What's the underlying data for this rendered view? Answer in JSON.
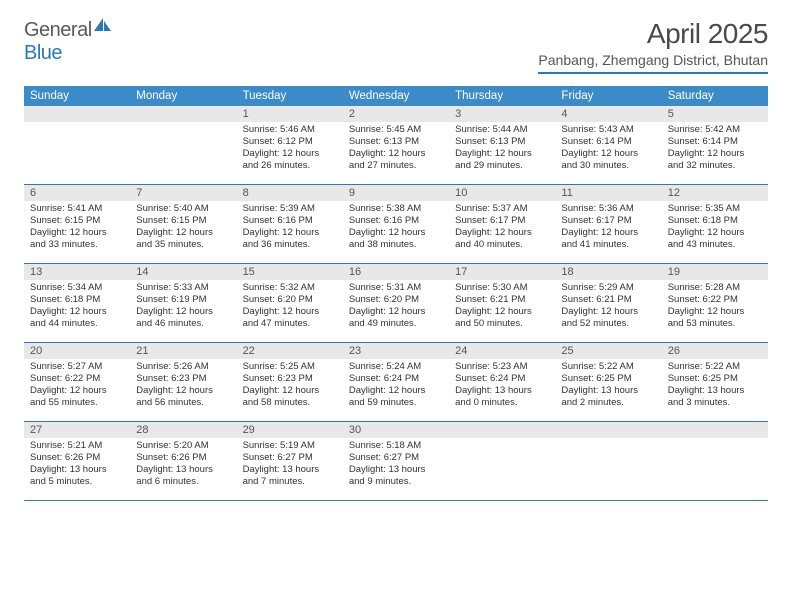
{
  "logo": {
    "part1": "General",
    "part2": "Blue"
  },
  "title": "April 2025",
  "location": "Panbang, Zhemgang District, Bhutan",
  "colors": {
    "headerBar": "#3b8bc9",
    "accentLine": "#2a7ab8",
    "dateBar": "#e8e8e8",
    "text": "#333333"
  },
  "dayNames": [
    "Sunday",
    "Monday",
    "Tuesday",
    "Wednesday",
    "Thursday",
    "Friday",
    "Saturday"
  ],
  "weeks": [
    [
      null,
      null,
      {
        "d": "1",
        "sr": "5:46 AM",
        "ss": "6:12 PM",
        "dl": "12 hours and 26 minutes."
      },
      {
        "d": "2",
        "sr": "5:45 AM",
        "ss": "6:13 PM",
        "dl": "12 hours and 27 minutes."
      },
      {
        "d": "3",
        "sr": "5:44 AM",
        "ss": "6:13 PM",
        "dl": "12 hours and 29 minutes."
      },
      {
        "d": "4",
        "sr": "5:43 AM",
        "ss": "6:14 PM",
        "dl": "12 hours and 30 minutes."
      },
      {
        "d": "5",
        "sr": "5:42 AM",
        "ss": "6:14 PM",
        "dl": "12 hours and 32 minutes."
      }
    ],
    [
      {
        "d": "6",
        "sr": "5:41 AM",
        "ss": "6:15 PM",
        "dl": "12 hours and 33 minutes."
      },
      {
        "d": "7",
        "sr": "5:40 AM",
        "ss": "6:15 PM",
        "dl": "12 hours and 35 minutes."
      },
      {
        "d": "8",
        "sr": "5:39 AM",
        "ss": "6:16 PM",
        "dl": "12 hours and 36 minutes."
      },
      {
        "d": "9",
        "sr": "5:38 AM",
        "ss": "6:16 PM",
        "dl": "12 hours and 38 minutes."
      },
      {
        "d": "10",
        "sr": "5:37 AM",
        "ss": "6:17 PM",
        "dl": "12 hours and 40 minutes."
      },
      {
        "d": "11",
        "sr": "5:36 AM",
        "ss": "6:17 PM",
        "dl": "12 hours and 41 minutes."
      },
      {
        "d": "12",
        "sr": "5:35 AM",
        "ss": "6:18 PM",
        "dl": "12 hours and 43 minutes."
      }
    ],
    [
      {
        "d": "13",
        "sr": "5:34 AM",
        "ss": "6:18 PM",
        "dl": "12 hours and 44 minutes."
      },
      {
        "d": "14",
        "sr": "5:33 AM",
        "ss": "6:19 PM",
        "dl": "12 hours and 46 minutes."
      },
      {
        "d": "15",
        "sr": "5:32 AM",
        "ss": "6:20 PM",
        "dl": "12 hours and 47 minutes."
      },
      {
        "d": "16",
        "sr": "5:31 AM",
        "ss": "6:20 PM",
        "dl": "12 hours and 49 minutes."
      },
      {
        "d": "17",
        "sr": "5:30 AM",
        "ss": "6:21 PM",
        "dl": "12 hours and 50 minutes."
      },
      {
        "d": "18",
        "sr": "5:29 AM",
        "ss": "6:21 PM",
        "dl": "12 hours and 52 minutes."
      },
      {
        "d": "19",
        "sr": "5:28 AM",
        "ss": "6:22 PM",
        "dl": "12 hours and 53 minutes."
      }
    ],
    [
      {
        "d": "20",
        "sr": "5:27 AM",
        "ss": "6:22 PM",
        "dl": "12 hours and 55 minutes."
      },
      {
        "d": "21",
        "sr": "5:26 AM",
        "ss": "6:23 PM",
        "dl": "12 hours and 56 minutes."
      },
      {
        "d": "22",
        "sr": "5:25 AM",
        "ss": "6:23 PM",
        "dl": "12 hours and 58 minutes."
      },
      {
        "d": "23",
        "sr": "5:24 AM",
        "ss": "6:24 PM",
        "dl": "12 hours and 59 minutes."
      },
      {
        "d": "24",
        "sr": "5:23 AM",
        "ss": "6:24 PM",
        "dl": "13 hours and 0 minutes."
      },
      {
        "d": "25",
        "sr": "5:22 AM",
        "ss": "6:25 PM",
        "dl": "13 hours and 2 minutes."
      },
      {
        "d": "26",
        "sr": "5:22 AM",
        "ss": "6:25 PM",
        "dl": "13 hours and 3 minutes."
      }
    ],
    [
      {
        "d": "27",
        "sr": "5:21 AM",
        "ss": "6:26 PM",
        "dl": "13 hours and 5 minutes."
      },
      {
        "d": "28",
        "sr": "5:20 AM",
        "ss": "6:26 PM",
        "dl": "13 hours and 6 minutes."
      },
      {
        "d": "29",
        "sr": "5:19 AM",
        "ss": "6:27 PM",
        "dl": "13 hours and 7 minutes."
      },
      {
        "d": "30",
        "sr": "5:18 AM",
        "ss": "6:27 PM",
        "dl": "13 hours and 9 minutes."
      },
      null,
      null,
      null
    ]
  ],
  "labels": {
    "sunrise": "Sunrise: ",
    "sunset": "Sunset: ",
    "daylight": "Daylight: "
  }
}
